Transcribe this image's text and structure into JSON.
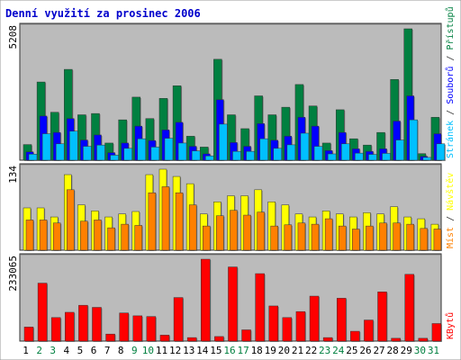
{
  "title": "Denní využití za prosinec 2006",
  "colors": {
    "background": "#ffffff",
    "panel": "#bbbbbb",
    "frame": "#333333",
    "title": "#0000cc",
    "hits": "#008040",
    "files": "#0000ff",
    "pages": "#00c0ff",
    "visits": "#ffff00",
    "sites": "#ff8000",
    "kbytes": "#ff0000",
    "weekday": "#000000",
    "weekend": "#008040"
  },
  "chart_data": [
    {
      "type": "bar",
      "panel": "top",
      "ymax_label": "5208",
      "ylim": [
        0,
        5208
      ],
      "categories": [
        "1",
        "2",
        "3",
        "4",
        "5",
        "6",
        "7",
        "8",
        "9",
        "10",
        "11",
        "12",
        "13",
        "14",
        "15",
        "16",
        "17",
        "18",
        "19",
        "20",
        "21",
        "22",
        "23",
        "24",
        "25",
        "26",
        "27",
        "28",
        "29",
        "30",
        "31"
      ],
      "weekend_days": [
        "2",
        "3",
        "9",
        "10",
        "16",
        "17",
        "23",
        "24",
        "30",
        "31"
      ],
      "legend": [
        {
          "text": "Stránek",
          "color_key": "pages"
        },
        {
          "text": " / ",
          "color_key": "frame"
        },
        {
          "text": "Souborů",
          "color_key": "files"
        },
        {
          "text": " / ",
          "color_key": "frame"
        },
        {
          "text": "Přístupů",
          "color_key": "hits"
        }
      ],
      "series": [
        {
          "name": "Přístupů",
          "color_key": "hits",
          "values": [
            620,
            3100,
            1900,
            3600,
            1800,
            1850,
            680,
            1600,
            2500,
            1650,
            2450,
            2950,
            950,
            520,
            4000,
            1800,
            1250,
            2550,
            1800,
            2100,
            3000,
            2150,
            680,
            2000,
            850,
            600,
            1100,
            3200,
            5208,
            260,
            1700
          ]
        },
        {
          "name": "Souborů",
          "color_key": "files",
          "values": [
            330,
            1750,
            1100,
            1650,
            800,
            1000,
            300,
            680,
            1350,
            780,
            1200,
            1500,
            550,
            250,
            2400,
            700,
            550,
            1450,
            790,
            950,
            1700,
            1350,
            380,
            1100,
            450,
            350,
            450,
            1550,
            2550,
            150,
            1050
          ]
        },
        {
          "name": "Stránek",
          "color_key": "pages",
          "values": [
            240,
            1050,
            650,
            1150,
            550,
            600,
            200,
            470,
            850,
            520,
            870,
            680,
            370,
            170,
            1430,
            350,
            350,
            850,
            470,
            610,
            1070,
            550,
            250,
            650,
            280,
            230,
            270,
            800,
            1600,
            110,
            650
          ]
        }
      ]
    },
    {
      "type": "bar",
      "panel": "middle",
      "ymax_label": "134",
      "ylim": [
        0,
        134
      ],
      "categories": [
        "1",
        "2",
        "3",
        "4",
        "5",
        "6",
        "7",
        "8",
        "9",
        "10",
        "11",
        "12",
        "13",
        "14",
        "15",
        "16",
        "17",
        "18",
        "19",
        "20",
        "21",
        "22",
        "23",
        "24",
        "25",
        "26",
        "27",
        "28",
        "29",
        "30",
        "31"
      ],
      "legend": [
        {
          "text": "Míst",
          "color_key": "sites"
        },
        {
          "text": " / ",
          "color_key": "frame"
        },
        {
          "text": "Návštěv",
          "color_key": "visits"
        }
      ],
      "series": [
        {
          "name": "Návštěv",
          "color_key": "visits",
          "values": [
            70,
            70,
            55,
            125,
            75,
            65,
            55,
            60,
            64,
            125,
            134,
            122,
            110,
            60,
            80,
            90,
            90,
            100,
            80,
            75,
            60,
            55,
            65,
            60,
            55,
            62,
            60,
            72,
            55,
            52,
            43
          ]
        },
        {
          "name": "Míst",
          "color_key": "sites",
          "values": [
            50,
            50,
            45,
            100,
            48,
            50,
            37,
            43,
            41,
            95,
            105,
            95,
            75,
            40,
            57,
            66,
            58,
            63,
            40,
            42,
            45,
            43,
            52,
            40,
            35,
            40,
            45,
            45,
            43,
            36,
            35
          ]
        }
      ]
    },
    {
      "type": "bar",
      "panel": "bottom",
      "ymax_label": "233065",
      "ylim": [
        0,
        233065
      ],
      "categories": [
        "1",
        "2",
        "3",
        "4",
        "5",
        "6",
        "7",
        "8",
        "9",
        "10",
        "11",
        "12",
        "13",
        "14",
        "15",
        "16",
        "17",
        "18",
        "19",
        "20",
        "21",
        "22",
        "23",
        "24",
        "25",
        "26",
        "27",
        "28",
        "29",
        "30",
        "31"
      ],
      "legend": [
        {
          "text": "KBytů",
          "color_key": "kbytes"
        }
      ],
      "series": [
        {
          "name": "KBytů",
          "color_key": "kbytes",
          "values": [
            40000,
            165000,
            67000,
            82000,
            102000,
            96000,
            20000,
            80000,
            72000,
            70000,
            17000,
            124000,
            10000,
            233065,
            13000,
            211000,
            32000,
            192000,
            100000,
            67000,
            84000,
            128000,
            10000,
            122000,
            28000,
            60000,
            140000,
            8000,
            190000,
            8000,
            50000
          ]
        }
      ]
    }
  ]
}
